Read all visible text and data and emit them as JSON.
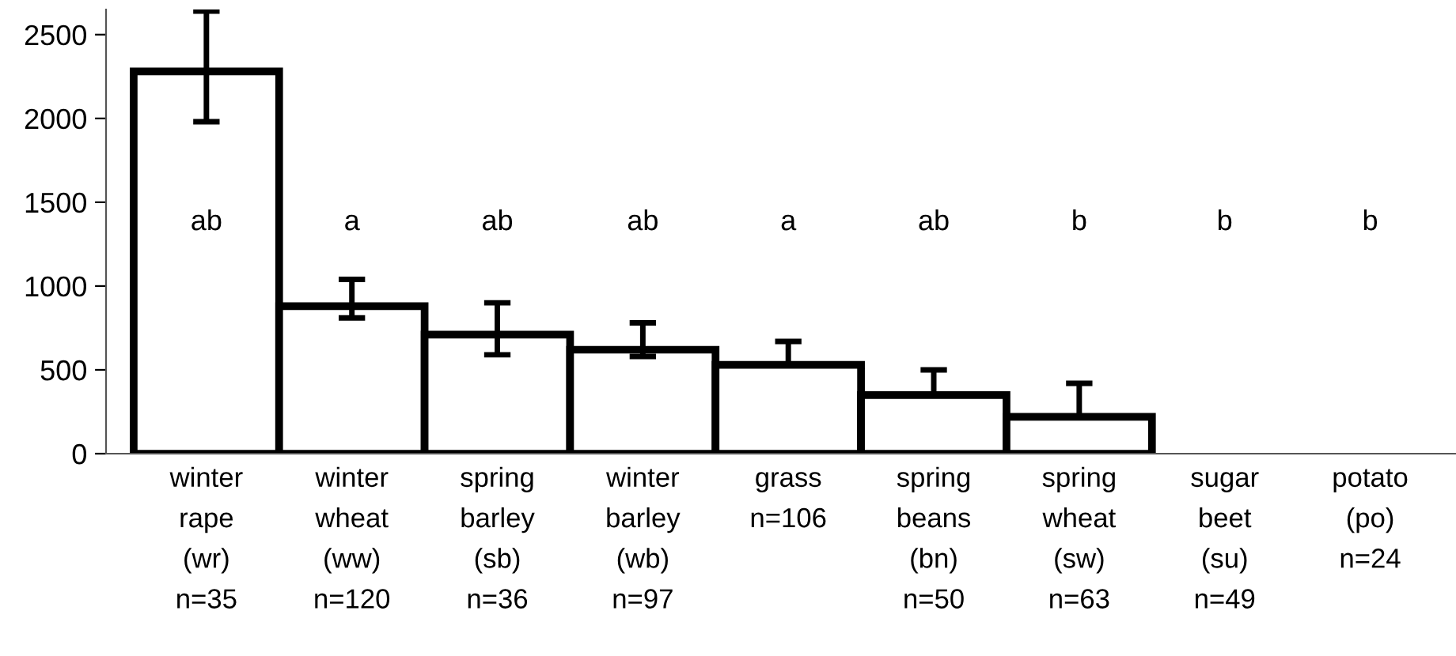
{
  "chart_data": {
    "type": "bar",
    "categories": [
      "winter\nrape\n(wr)\nn=35",
      "winter\nwheat\n(ww)\nn=120",
      "spring\nbarley\n(sb)\nn=36",
      "winter\nbarley\n(wb)\nn=97",
      "grass\nn=106",
      "spring\nbeans\n(bn)\nn=50",
      "spring\nwheat\n(sw)\nn=63",
      "sugar\nbeet\n(su)\nn=49",
      "potato\n(po)\nn=24"
    ],
    "values": [
      2280,
      880,
      710,
      620,
      530,
      350,
      220,
      null,
      null
    ],
    "errors": [
      [
        1980,
        2640
      ],
      [
        810,
        1040
      ],
      [
        590,
        900
      ],
      [
        580,
        780
      ],
      [
        530,
        670
      ],
      [
        350,
        500
      ],
      [
        220,
        420
      ],
      null,
      null
    ],
    "color": "#ffffff",
    "ylim": [
      0,
      2650
    ],
    "yticks": [
      0,
      500,
      1000,
      1500,
      2000,
      2500
    ],
    "grid": false,
    "annotations": [
      "ab",
      "a",
      "ab",
      "ab",
      "a",
      "ab",
      "b",
      "b",
      "b"
    ]
  }
}
